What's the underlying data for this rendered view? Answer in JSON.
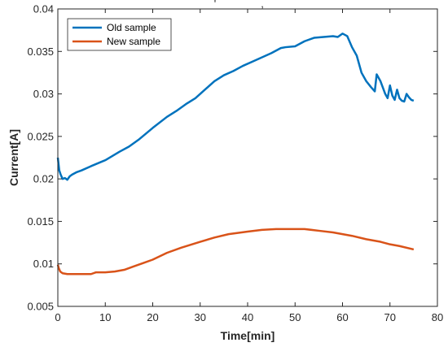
{
  "chart_data": {
    "type": "line",
    "title": "",
    "xlabel": "Time[min]",
    "ylabel": "Current[A]",
    "xlim": [
      0,
      80
    ],
    "ylim": [
      0.005,
      0.04
    ],
    "x_ticks": [
      0,
      10,
      20,
      30,
      40,
      50,
      60,
      70,
      80
    ],
    "y_ticks": [
      "0.005",
      "0.01",
      "0.015",
      "0.02",
      "0.025",
      "0.03",
      "0.035",
      "0.04"
    ],
    "grid": false,
    "legend_position": "top-left",
    "series": [
      {
        "name": "Old sample",
        "color": "#0072BD",
        "x": [
          0,
          0.3,
          0.6,
          1,
          1.5,
          2,
          2.5,
          3,
          4,
          5,
          7,
          10,
          13,
          15,
          17,
          20,
          23,
          25,
          27,
          29,
          31,
          33,
          35,
          37,
          39,
          41,
          43,
          45,
          47,
          48,
          50,
          52,
          54,
          56,
          58,
          59,
          60,
          61,
          62,
          63,
          64,
          65,
          66,
          66.8,
          67.2,
          68,
          69,
          69.5,
          70,
          70.5,
          71,
          71.5,
          72,
          72.5,
          73,
          73.5,
          74,
          74.5,
          75
        ],
        "y": [
          0.0225,
          0.021,
          0.0205,
          0.02,
          0.0201,
          0.0199,
          0.0203,
          0.0205,
          0.0208,
          0.021,
          0.0215,
          0.0222,
          0.0232,
          0.0238,
          0.0246,
          0.026,
          0.0273,
          0.028,
          0.0288,
          0.0295,
          0.0305,
          0.0315,
          0.0322,
          0.0327,
          0.0333,
          0.0338,
          0.0343,
          0.0348,
          0.0354,
          0.0355,
          0.0356,
          0.0362,
          0.0366,
          0.0367,
          0.0368,
          0.0367,
          0.0371,
          0.0368,
          0.0355,
          0.0345,
          0.0325,
          0.0315,
          0.0308,
          0.0303,
          0.0323,
          0.0315,
          0.03,
          0.0295,
          0.031,
          0.0298,
          0.0293,
          0.0305,
          0.0295,
          0.0292,
          0.0291,
          0.03,
          0.0296,
          0.0293,
          0.0292
        ]
      },
      {
        "name": "New sample",
        "color": "#D95319",
        "x": [
          0,
          0.2,
          0.5,
          1,
          2,
          3,
          5,
          7,
          8,
          10,
          12,
          14,
          16,
          18,
          20,
          23,
          26,
          30,
          33,
          36,
          40,
          43,
          46,
          48,
          50,
          52,
          55,
          58,
          60,
          62,
          65,
          68,
          70,
          72,
          75
        ],
        "y": [
          0.0099,
          0.0095,
          0.0091,
          0.0089,
          0.0088,
          0.0088,
          0.0088,
          0.0088,
          0.009,
          0.009,
          0.0091,
          0.0093,
          0.0097,
          0.0101,
          0.0105,
          0.0113,
          0.0119,
          0.0126,
          0.0131,
          0.0135,
          0.0138,
          0.014,
          0.0141,
          0.0141,
          0.0141,
          0.0141,
          0.0139,
          0.0137,
          0.0135,
          0.0133,
          0.0129,
          0.0126,
          0.0123,
          0.0121,
          0.0117
        ]
      }
    ],
    "stray_marks": [
      "'",
      ","
    ]
  }
}
